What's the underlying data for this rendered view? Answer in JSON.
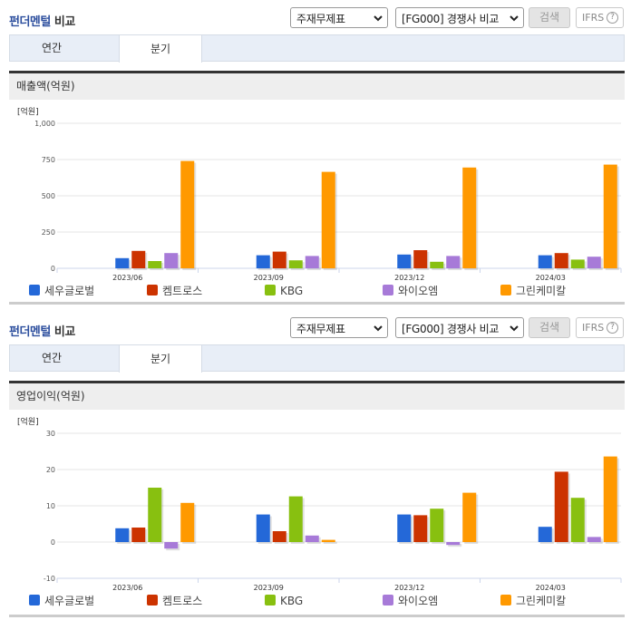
{
  "sections": [
    {
      "title_accent": "펀더멘털",
      "title_rest": " 비교",
      "select_statement": "주재무제표",
      "select_compare": "[FG000] 경쟁사 비교",
      "search_label": "검색",
      "ifrs_label": "IFRS",
      "ifrs_help": "?",
      "tabs": [
        {
          "label": "연간",
          "active": false
        },
        {
          "label": "분기",
          "active": true
        }
      ],
      "chart_title": "매출액(억원)"
    },
    {
      "title_accent": "펀더멘털",
      "title_rest": " 비교",
      "select_statement": "주재무제표",
      "select_compare": "[FG000] 경쟁사 비교",
      "search_label": "검색",
      "ifrs_label": "IFRS",
      "ifrs_help": "?",
      "tabs": [
        {
          "label": "연간",
          "active": false
        },
        {
          "label": "분기",
          "active": true
        }
      ],
      "chart_title": "영업이익(억원)"
    }
  ],
  "legend": [
    {
      "name": "세우글로벌",
      "color": "#2468d8"
    },
    {
      "name": "켐트로스",
      "color": "#cc3300"
    },
    {
      "name": "KBG",
      "color": "#88c010"
    },
    {
      "name": "와이오엠",
      "color": "#a77ad8"
    },
    {
      "name": "그린케미칼",
      "color": "#ff9900"
    }
  ],
  "chart_data": [
    {
      "type": "bar",
      "title": "매출액(억원)",
      "unit_label": "[억원]",
      "xlabel": "",
      "ylabel": "억원",
      "categories": [
        "2023/06",
        "2023/09",
        "2023/12",
        "2024/03"
      ],
      "yticks": [
        0,
        250,
        500,
        750,
        1000
      ],
      "ytick_labels": [
        "0",
        "250",
        "500",
        "750",
        "1,000"
      ],
      "ylim": [
        0,
        1000
      ],
      "grid": true,
      "legend_position": "bottom",
      "series": [
        {
          "name": "세우글로벌",
          "values": [
            70,
            90,
            95,
            90
          ]
        },
        {
          "name": "켐트로스",
          "values": [
            120,
            115,
            125,
            105
          ]
        },
        {
          "name": "KBG",
          "values": [
            50,
            55,
            45,
            60
          ]
        },
        {
          "name": "와이오엠",
          "values": [
            105,
            85,
            85,
            80
          ]
        },
        {
          "name": "그린케미칼",
          "values": [
            740,
            665,
            695,
            715
          ]
        }
      ]
    },
    {
      "type": "bar",
      "title": "영업이익(억원)",
      "unit_label": "[억원]",
      "xlabel": "",
      "ylabel": "억원",
      "categories": [
        "2023/06",
        "2023/09",
        "2023/12",
        "2024/03"
      ],
      "yticks": [
        -10,
        0,
        10,
        20,
        30
      ],
      "ytick_labels": [
        "-10",
        "0",
        "10",
        "20",
        "30"
      ],
      "ylim": [
        -10,
        30
      ],
      "grid": true,
      "legend_position": "bottom",
      "series": [
        {
          "name": "세우글로벌",
          "values": [
            3.8,
            7.6,
            7.6,
            4.2
          ]
        },
        {
          "name": "켐트로스",
          "values": [
            4.0,
            3.0,
            7.4,
            19.4
          ]
        },
        {
          "name": "KBG",
          "values": [
            15.0,
            12.6,
            9.2,
            12.2
          ]
        },
        {
          "name": "와이오엠",
          "values": [
            -1.8,
            1.8,
            -0.8,
            1.4
          ]
        },
        {
          "name": "그린케미칼",
          "values": [
            10.8,
            0.6,
            13.6,
            23.6
          ]
        }
      ]
    }
  ]
}
